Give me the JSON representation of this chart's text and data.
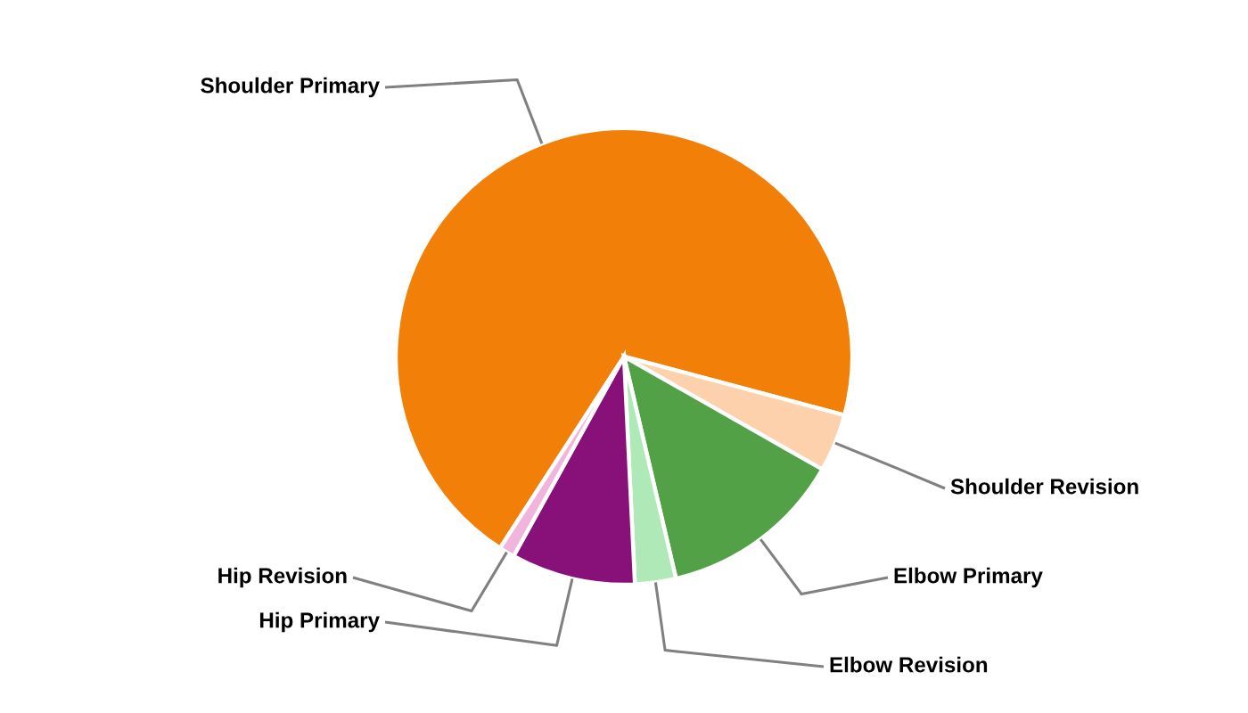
{
  "chart_data": {
    "type": "pie",
    "categories": [
      "Shoulder Primary",
      "Shoulder Revision",
      "Elbow Primary",
      "Elbow Revision",
      "Hip Primary",
      "Hip Revision"
    ],
    "values": [
      70.0,
      4.1,
      13.1,
      2.9,
      8.8,
      1.1
    ],
    "colors": [
      "#f17f08",
      "#fcd1ab",
      "#53a146",
      "#b0e9b8",
      "#871079",
      "#f1b5dd"
    ]
  }
}
